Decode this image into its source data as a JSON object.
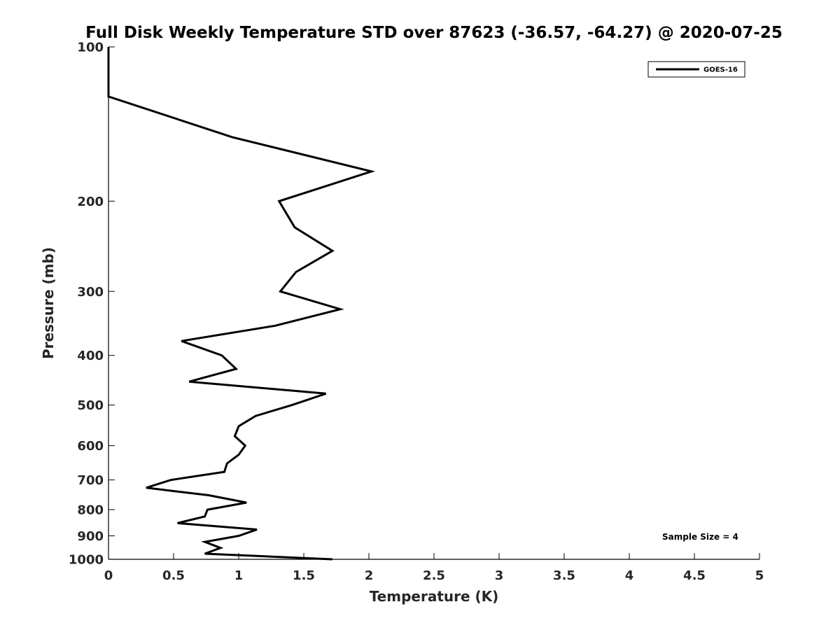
{
  "chart_data": {
    "type": "line",
    "title": "Full Disk Weekly Temperature STD over 87623 (-36.57, -64.27) @ 2020-07-25",
    "xlabel": "Temperature (K)",
    "ylabel": "Pressure (mb)",
    "xlim": [
      0,
      5
    ],
    "ylim": [
      1000,
      100
    ],
    "y_scale": "log",
    "y_reversed": true,
    "grid": false,
    "legend_position": "top-right",
    "x_ticks": [
      "0",
      "0.5",
      "1",
      "1.5",
      "2",
      "2.5",
      "3",
      "3.5",
      "4",
      "4.5",
      "5"
    ],
    "y_ticks": [
      "100",
      "200",
      "300",
      "400",
      "500",
      "600",
      "700",
      "800",
      "900",
      "1000"
    ],
    "annotation": "Sample Size = 4",
    "series": [
      {
        "name": "GOES-16",
        "color": "#000000",
        "points": [
          {
            "p": 100,
            "t": 0.0
          },
          {
            "p": 125,
            "t": 0.0
          },
          {
            "p": 150,
            "t": 0.95
          },
          {
            "p": 175,
            "t": 2.02
          },
          {
            "p": 200,
            "t": 1.31
          },
          {
            "p": 225,
            "t": 1.43
          },
          {
            "p": 250,
            "t": 1.72
          },
          {
            "p": 275,
            "t": 1.44
          },
          {
            "p": 300,
            "t": 1.32
          },
          {
            "p": 325,
            "t": 1.78
          },
          {
            "p": 350,
            "t": 1.28
          },
          {
            "p": 375,
            "t": 0.56
          },
          {
            "p": 400,
            "t": 0.87
          },
          {
            "p": 425,
            "t": 0.98
          },
          {
            "p": 450,
            "t": 0.62
          },
          {
            "p": 475,
            "t": 1.67
          },
          {
            "p": 500,
            "t": 1.41
          },
          {
            "p": 525,
            "t": 1.13
          },
          {
            "p": 550,
            "t": 1.0
          },
          {
            "p": 575,
            "t": 0.97
          },
          {
            "p": 600,
            "t": 1.05
          },
          {
            "p": 625,
            "t": 1.0
          },
          {
            "p": 650,
            "t": 0.91
          },
          {
            "p": 675,
            "t": 0.89
          },
          {
            "p": 700,
            "t": 0.48
          },
          {
            "p": 725,
            "t": 0.29
          },
          {
            "p": 750,
            "t": 0.77
          },
          {
            "p": 775,
            "t": 1.06
          },
          {
            "p": 800,
            "t": 0.76
          },
          {
            "p": 825,
            "t": 0.74
          },
          {
            "p": 850,
            "t": 0.53
          },
          {
            "p": 875,
            "t": 1.14
          },
          {
            "p": 900,
            "t": 1.0
          },
          {
            "p": 925,
            "t": 0.74
          },
          {
            "p": 950,
            "t": 0.86
          },
          {
            "p": 975,
            "t": 0.74
          },
          {
            "p": 1000,
            "t": 1.72
          }
        ]
      }
    ]
  }
}
